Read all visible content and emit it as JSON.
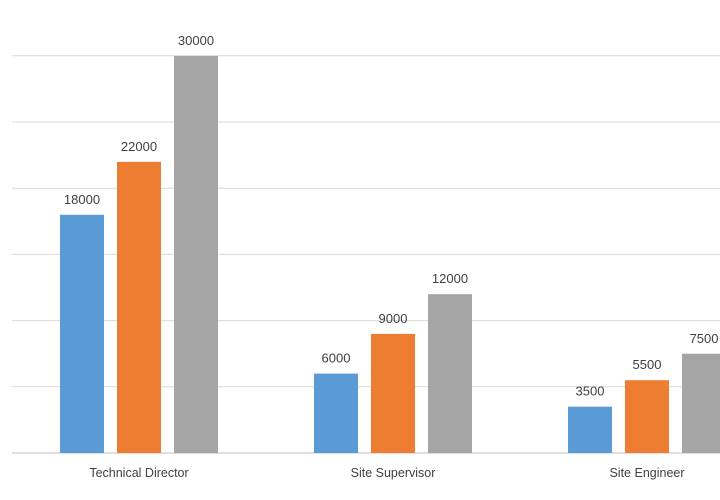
{
  "chart_data": {
    "type": "bar",
    "categories": [
      "Technical Director",
      "Site Supervisor",
      "Site Engineer"
    ],
    "series": [
      {
        "values": [
          18000,
          6000,
          3500
        ],
        "color": "#5b9bd5"
      },
      {
        "values": [
          22000,
          9000,
          5500
        ],
        "color": "#ed7d31"
      },
      {
        "values": [
          30000,
          12000,
          7500
        ],
        "color": "#a5a5a5"
      }
    ],
    "data_labels": [
      [
        "18000",
        "6000",
        "3500"
      ],
      [
        "22000",
        "9000",
        "5500"
      ],
      [
        "30000",
        "12000",
        "7500"
      ]
    ],
    "title": "",
    "xlabel": "",
    "ylabel": "",
    "ylim": [
      0,
      30000
    ],
    "grid": true,
    "legend": "none"
  }
}
